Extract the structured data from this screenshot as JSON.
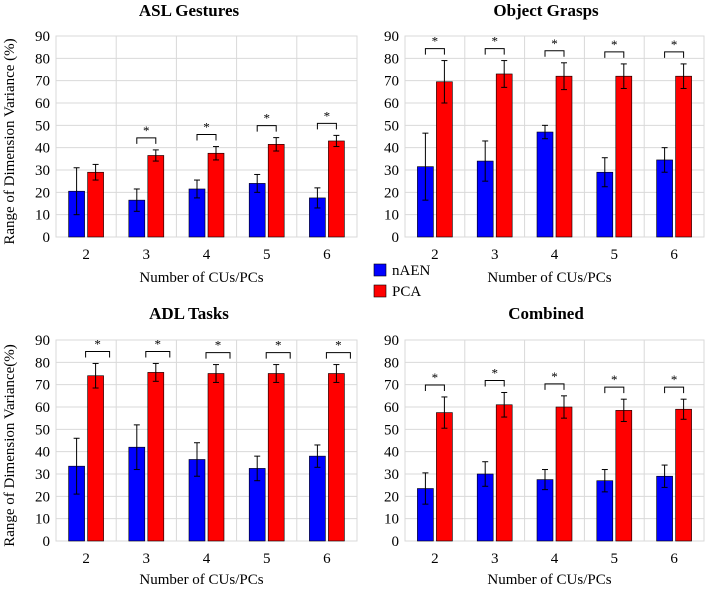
{
  "figure": {
    "ylabel": "Range of Dimension Variance(%)",
    "xlabel": "Number of CUs/PCs"
  },
  "legend": {
    "items": [
      {
        "name": "nAEN",
        "color": "#0000ff"
      },
      {
        "name": "PCA",
        "color": "#ff0000"
      }
    ]
  },
  "chart_data": [
    {
      "type": "bar",
      "title": "ASL Gestures",
      "xlabel": "Number of CUs/PCs",
      "ylabel": "Range of Dimension Variance (%)",
      "ylim": [
        0,
        90
      ],
      "yticks": [
        0,
        10,
        20,
        30,
        40,
        50,
        60,
        70,
        80,
        90
      ],
      "categories": [
        "2",
        "3",
        "4",
        "5",
        "6"
      ],
      "series": [
        {
          "name": "nAEN",
          "color": "#0000ff",
          "values": [
            20.5,
            16.5,
            21.5,
            24.0,
            17.5
          ],
          "errors": [
            10.5,
            5.0,
            4.0,
            4.0,
            4.5
          ]
        },
        {
          "name": "PCA",
          "color": "#ff0000",
          "values": [
            29.0,
            36.5,
            37.5,
            41.5,
            43.0
          ],
          "errors": [
            3.5,
            2.5,
            3.0,
            3.0,
            2.5
          ]
        }
      ],
      "significance": [
        false,
        true,
        true,
        true,
        true
      ],
      "star_label": "*"
    },
    {
      "type": "bar",
      "title": "Object Grasps",
      "xlabel": "Number of CUs/PCs",
      "ylabel": "",
      "ylim": [
        0,
        90
      ],
      "yticks": [
        0,
        10,
        20,
        30,
        40,
        50,
        60,
        70,
        80,
        90
      ],
      "categories": [
        "2",
        "3",
        "4",
        "5",
        "6"
      ],
      "series": [
        {
          "name": "nAEN",
          "color": "#0000ff",
          "values": [
            31.5,
            34.0,
            47.0,
            29.0,
            34.5
          ],
          "errors": [
            15.0,
            9.0,
            3.0,
            6.5,
            5.5
          ]
        },
        {
          "name": "PCA",
          "color": "#ff0000",
          "values": [
            69.5,
            73.0,
            72.0,
            72.0,
            72.0
          ],
          "errors": [
            9.5,
            6.0,
            6.0,
            5.5,
            5.5
          ]
        }
      ],
      "significance": [
        true,
        true,
        true,
        true,
        true
      ],
      "star_label": "*"
    },
    {
      "type": "bar",
      "title": "ADL Tasks",
      "xlabel": "Number of CUs/PCs",
      "ylabel": "Range of Dimension Variance(%)",
      "ylim": [
        0,
        90
      ],
      "yticks": [
        0,
        10,
        20,
        30,
        40,
        50,
        60,
        70,
        80,
        90
      ],
      "categories": [
        "2",
        "3",
        "4",
        "5",
        "6"
      ],
      "series": [
        {
          "name": "nAEN",
          "color": "#0000ff",
          "values": [
            33.5,
            42.0,
            36.5,
            32.5,
            38.0
          ],
          "errors": [
            12.5,
            10.0,
            7.5,
            5.5,
            5.0
          ]
        },
        {
          "name": "PCA",
          "color": "#ff0000",
          "values": [
            74.0,
            75.5,
            75.0,
            75.0,
            75.0
          ],
          "errors": [
            5.5,
            4.0,
            4.0,
            4.0,
            4.0
          ]
        }
      ],
      "significance": [
        true,
        true,
        true,
        true,
        true
      ],
      "star_label": "*"
    },
    {
      "type": "bar",
      "title": "Combined",
      "xlabel": "Number of CUs/PCs",
      "ylabel": "",
      "ylim": [
        0,
        90
      ],
      "yticks": [
        0,
        10,
        20,
        30,
        40,
        50,
        60,
        70,
        80,
        90
      ],
      "categories": [
        "2",
        "3",
        "4",
        "5",
        "6"
      ],
      "series": [
        {
          "name": "nAEN",
          "color": "#0000ff",
          "values": [
            23.5,
            30.0,
            27.5,
            27.0,
            29.0
          ],
          "errors": [
            7.0,
            5.5,
            4.5,
            5.0,
            5.0
          ]
        },
        {
          "name": "PCA",
          "color": "#ff0000",
          "values": [
            57.5,
            61.0,
            60.0,
            58.5,
            59.0
          ],
          "errors": [
            7.0,
            5.5,
            5.0,
            5.0,
            4.5
          ]
        }
      ],
      "significance": [
        true,
        true,
        true,
        true,
        true
      ],
      "star_label": "*"
    }
  ]
}
